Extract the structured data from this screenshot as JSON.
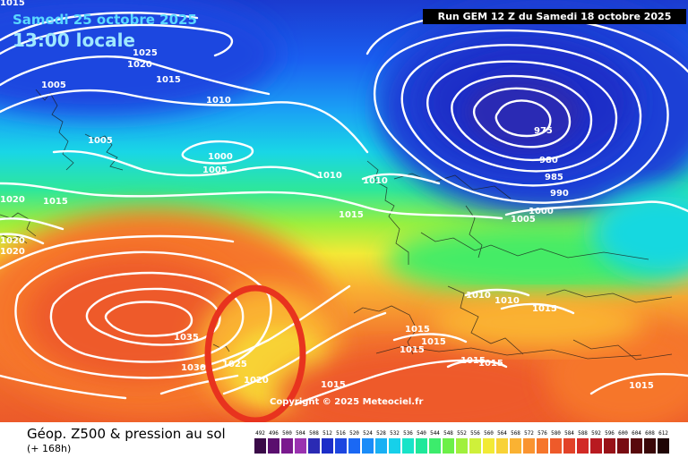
{
  "header": {
    "date": "Samedi 25 octobre 2025",
    "time": "13:00 locale",
    "run": "Run GEM 12 Z du Samedi 18 octobre 2025"
  },
  "footer": {
    "product": "Géop. Z500 & pression au sol",
    "lead": "(+ 168h)",
    "copyright": "Copyright © 2025 Meteociel.fr"
  },
  "isobar_labels": [
    "1015",
    "1025",
    "1020",
    "1015",
    "1005",
    "1010",
    "1005",
    "1000",
    "1005",
    "1015",
    "1020",
    "1020",
    "1020",
    "1010",
    "1010",
    "1015",
    "975",
    "980",
    "985",
    "990",
    "1000",
    "1005",
    "1010",
    "1010",
    "1015",
    "1015",
    "1015",
    "1015",
    "1015",
    "1015",
    "1035",
    "1030",
    "1025",
    "1020",
    "1015",
    "1015"
  ],
  "legend": {
    "labels": [
      "492",
      "496",
      "500",
      "504",
      "508",
      "512",
      "516",
      "520",
      "524",
      "528",
      "532",
      "536",
      "540",
      "544",
      "548",
      "552",
      "556",
      "560",
      "564",
      "568",
      "572",
      "576",
      "580",
      "584",
      "588",
      "592",
      "596",
      "600",
      "604",
      "608",
      "612"
    ],
    "colors": [
      "#3a0a48",
      "#5a0f6e",
      "#7a1a8e",
      "#9a32b0",
      "#2a2ab4",
      "#1c2ec8",
      "#1c46e0",
      "#1a68f4",
      "#1a8cf8",
      "#18b0f4",
      "#16d0ea",
      "#18e4c8",
      "#1ee89a",
      "#3cec6c",
      "#6cf048",
      "#a0f03c",
      "#cff03a",
      "#f2ea36",
      "#f8d236",
      "#fab232",
      "#fa9430",
      "#f6762c",
      "#ee5a2a",
      "#e24228",
      "#d22a26",
      "#b81a20",
      "#981218",
      "#780c12",
      "#580a0c",
      "#3a0808",
      "#200505"
    ],
    "text_colors": [
      "#ffffff",
      "#ffffff",
      "#ffffff",
      "#ffffff",
      "#ffffff",
      "#ffffff",
      "#ffffff",
      "#000000",
      "#000000",
      "#000000",
      "#000000",
      "#000000",
      "#000000",
      "#000000",
      "#000000",
      "#000000",
      "#000000",
      "#000000",
      "#000000",
      "#000000",
      "#000000",
      "#000000",
      "#000000",
      "#000000",
      "#ffffff",
      "#ffffff",
      "#ffffff",
      "#ffffff",
      "#ffffff",
      "#ffffff",
      "#ffffff"
    ]
  },
  "annotation": {
    "marker_color": "#e8331e"
  }
}
